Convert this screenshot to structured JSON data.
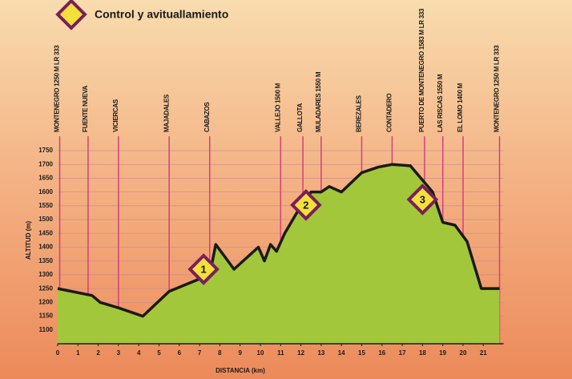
{
  "chart_data": {
    "type": "area",
    "legend": "Control y avituallamiento",
    "xlabel": "DISTANCIA (km)",
    "ylabel": "ALTITUD (m)",
    "x": [
      0,
      1.7,
      2.1,
      3,
      4.2,
      5.5,
      6.5,
      7.5,
      7.8,
      8.7,
      9.9,
      10.2,
      10.5,
      10.8,
      11.2,
      12,
      12.5,
      13,
      13.4,
      14,
      15,
      15.8,
      16.5,
      17.4,
      18.5,
      19,
      19.6,
      20.2,
      20.9,
      21.8
    ],
    "values": [
      1250,
      1225,
      1200,
      1180,
      1150,
      1240,
      1270,
      1300,
      1410,
      1320,
      1400,
      1350,
      1410,
      1385,
      1450,
      1550,
      1600,
      1600,
      1620,
      1600,
      1670,
      1690,
      1700,
      1695,
      1600,
      1490,
      1480,
      1420,
      1250,
      1250
    ],
    "color": "#a3c73a",
    "line_color": "#1a1a1a",
    "xlim": [
      0,
      22
    ],
    "xticks": [
      0,
      1,
      2,
      3,
      4,
      5,
      6,
      7,
      8,
      9,
      10,
      11,
      12,
      13,
      14,
      15,
      16,
      17,
      18,
      19,
      20,
      21
    ],
    "ylim": [
      1050,
      1750
    ],
    "yticks": [
      1100,
      1150,
      1200,
      1250,
      1300,
      1350,
      1400,
      1450,
      1500,
      1550,
      1600,
      1650,
      1700,
      1750
    ],
    "grid": true,
    "waypoints": [
      {
        "label": "MONTENEGRO 1250 M LR 333",
        "x": 0.1
      },
      {
        "label": "FUENTE NUEVA",
        "x": 1.5
      },
      {
        "label": "VICIERCAS",
        "x": 3
      },
      {
        "label": "MAJADALES",
        "x": 5.5
      },
      {
        "label": "CABAZOS",
        "x": 7.5
      },
      {
        "label": "VALLEJO 1500 M",
        "x": 11.0
      },
      {
        "label": "GALLOTA",
        "x": 12.1
      },
      {
        "label": "MULADARES 1550 M",
        "x": 13.0
      },
      {
        "label": "BEREZALES",
        "x": 15.0
      },
      {
        "label": "CONTADERO",
        "x": 16.5
      },
      {
        "label": "PUERTO DE MONTENEGRO 1583 M LR 333",
        "x": 18.1
      },
      {
        "label": "LAS RISCAS 1550 M",
        "x": 19.0
      },
      {
        "label": "EL LOMO 1400 M",
        "x": 20.0
      },
      {
        "label": "MONTENEGRO 1250 M LR 333",
        "x": 21.8
      }
    ],
    "controls": [
      {
        "label": "1",
        "x": 7.2,
        "y": 1320
      },
      {
        "label": "2",
        "x": 12.25,
        "y": 1553
      },
      {
        "label": "3",
        "x": 18.0,
        "y": 1573
      }
    ]
  }
}
